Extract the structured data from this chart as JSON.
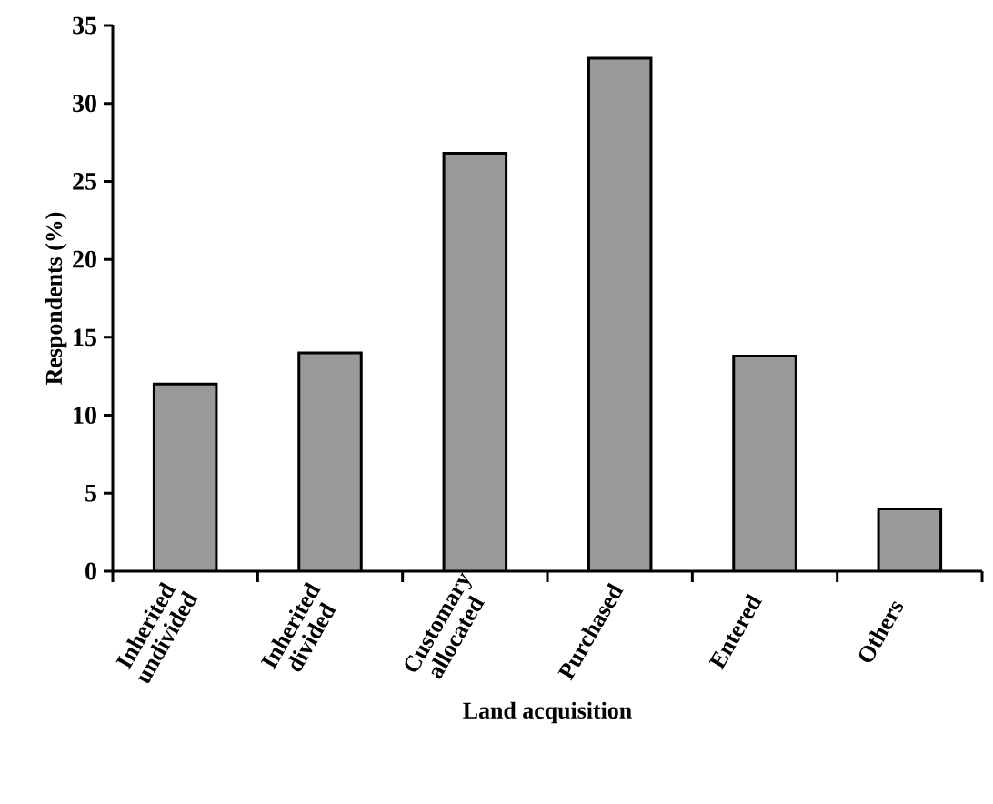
{
  "chart_data": {
    "type": "bar",
    "xlabel": "Land acquisition",
    "ylabel": "Respondents (%)",
    "categories": [
      "Inherited undivided",
      "Inherited divided",
      "Customary allocated",
      "Purchased",
      "Entered",
      "Others"
    ],
    "values": [
      12,
      14,
      26.8,
      32.9,
      13.8,
      4
    ],
    "color": "#999999",
    "ylim": [
      0,
      35
    ],
    "yticks": [
      0,
      5,
      10,
      15,
      20,
      25,
      30,
      35
    ]
  }
}
